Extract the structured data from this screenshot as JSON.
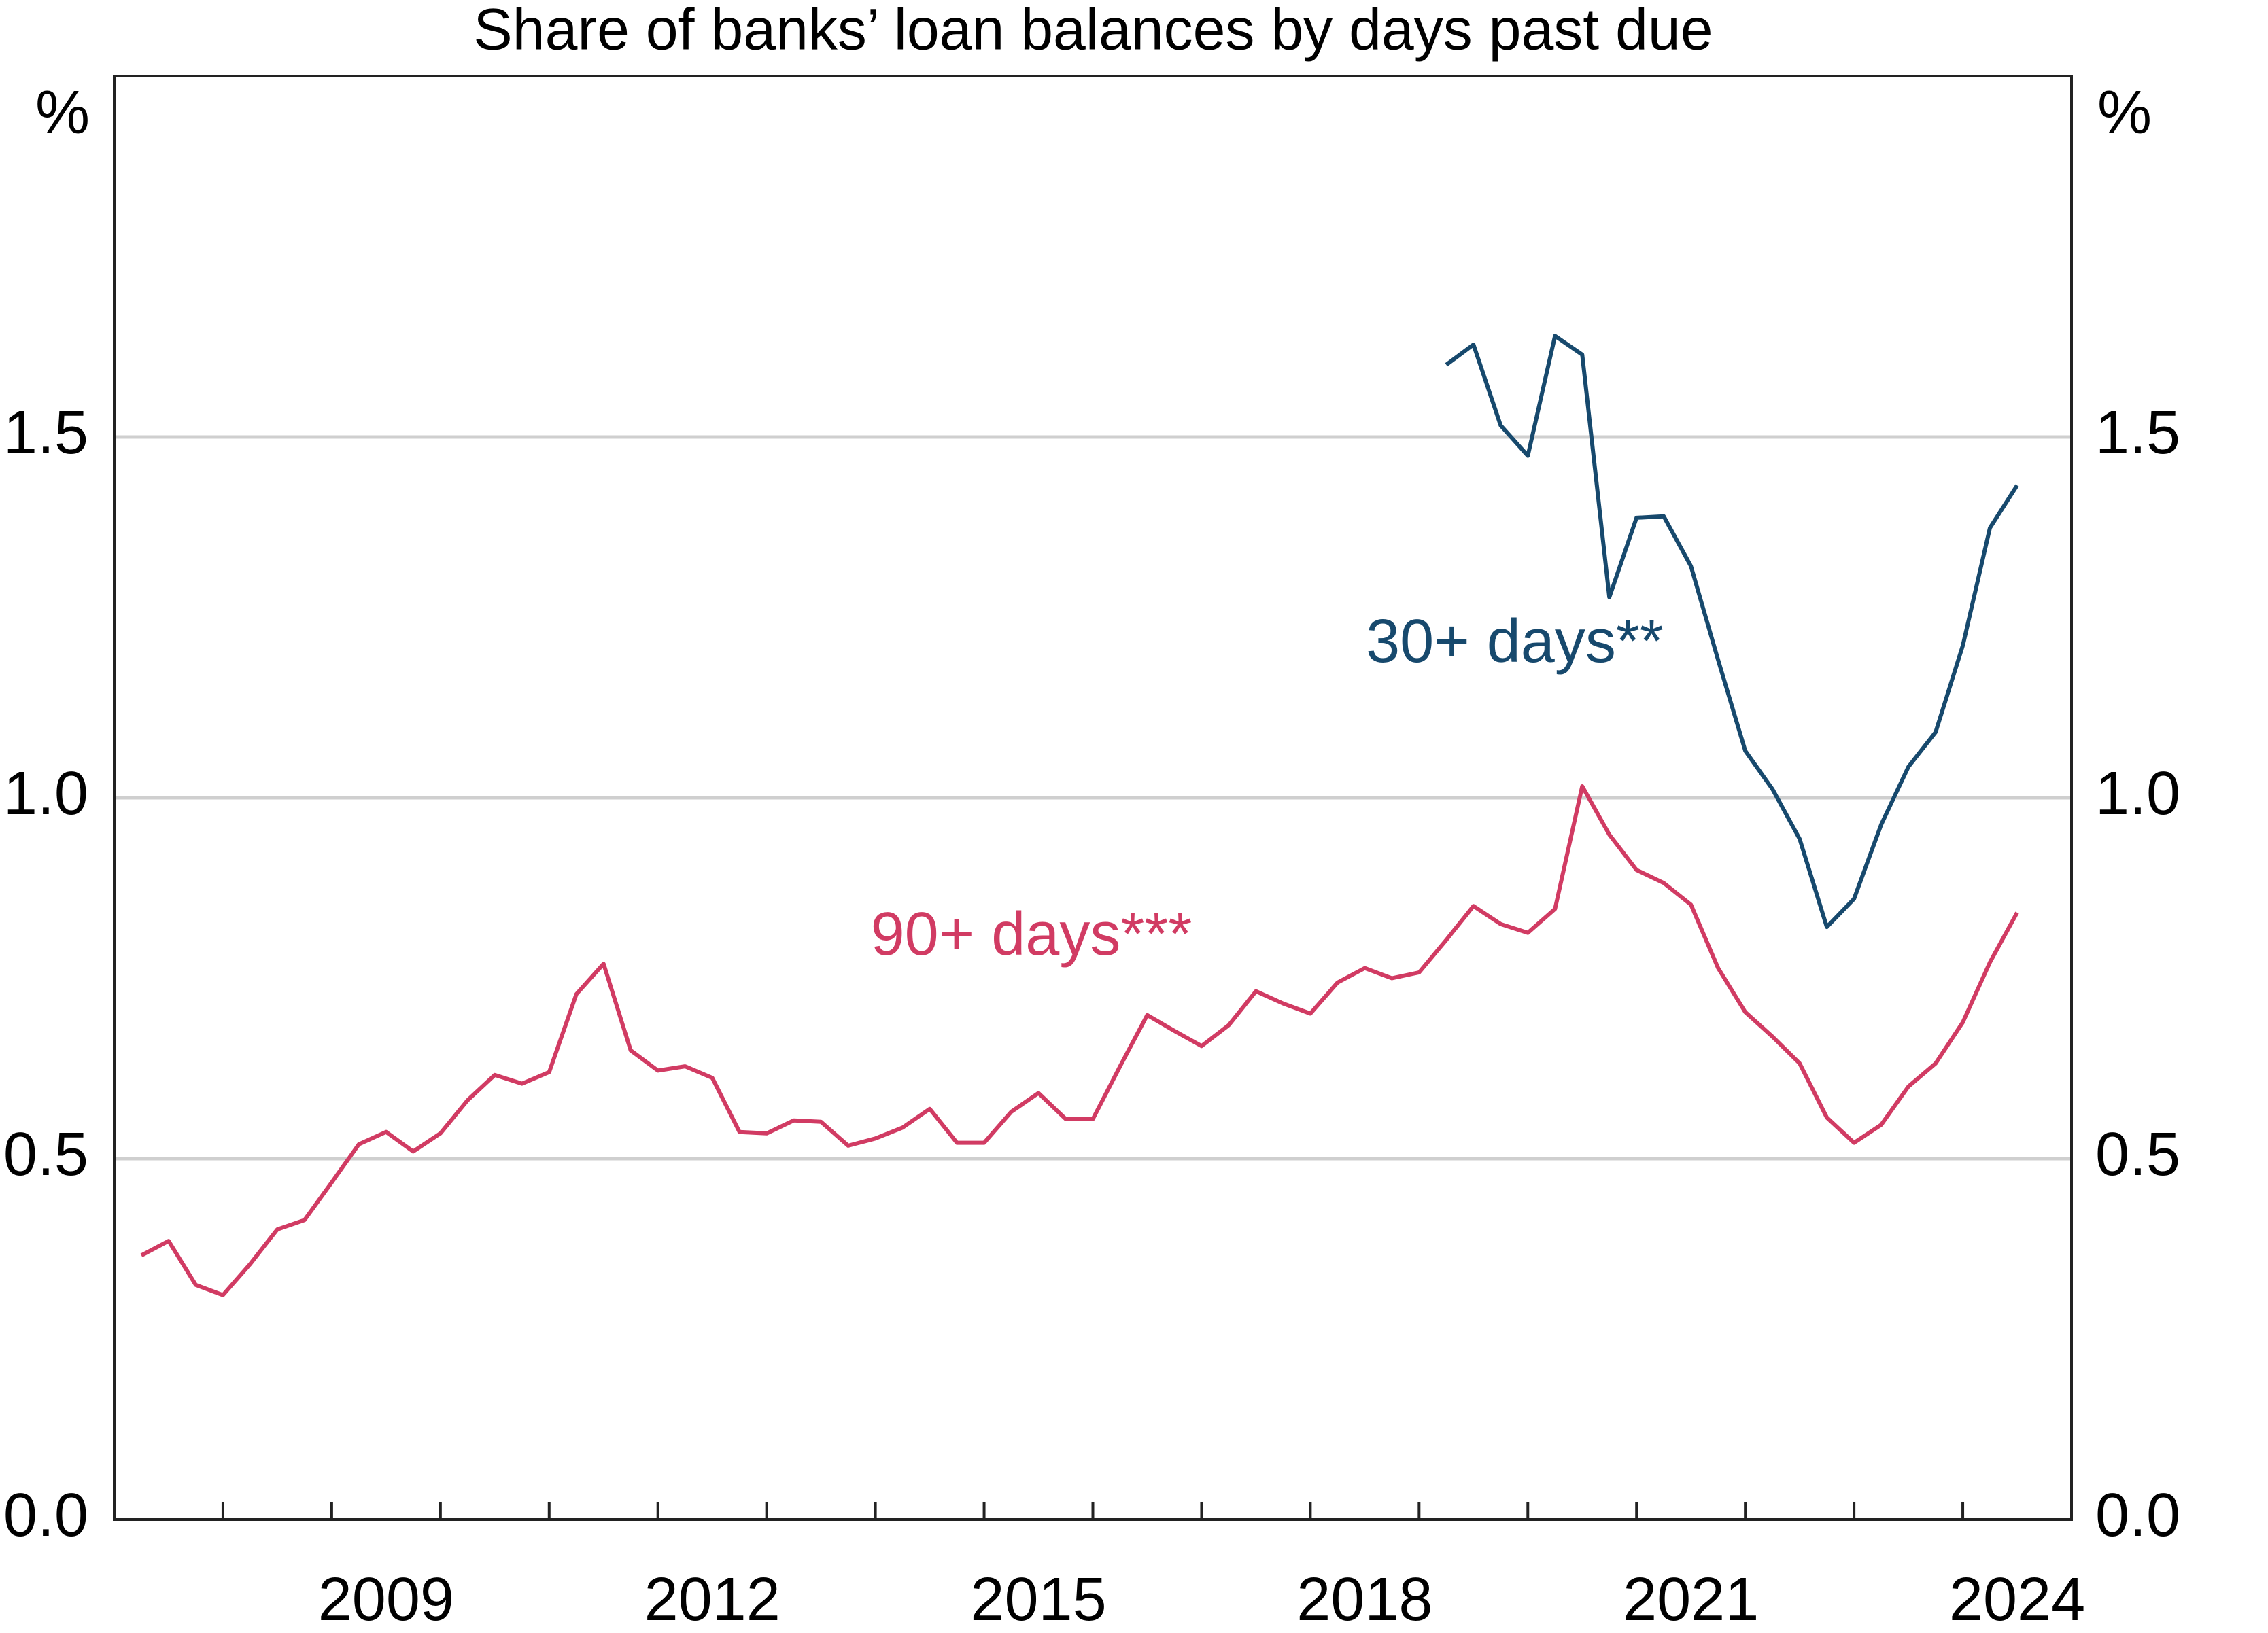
{
  "chart_data": {
    "type": "line",
    "title": "Share of banks’ loan balances by days past due",
    "y_label": "%",
    "y2_label": "%",
    "xlim": [
      2007,
      2025
    ],
    "xticks": [
      2009,
      2012,
      2015,
      2018,
      2021,
      2024
    ],
    "xminor_ticks": [
      2008,
      2009,
      2010,
      2011,
      2012,
      2013,
      2014,
      2015,
      2016,
      2017,
      2018,
      2019,
      2020,
      2021,
      2022,
      2023,
      2024
    ],
    "ylim": [
      0,
      2
    ],
    "yticks": [
      {
        "value": 0,
        "label": "0.0"
      },
      0.5,
      {
        "value": 1,
        "label": "1.0"
      },
      1.5
    ],
    "y2lim": [
      0,
      2
    ],
    "y2ticks": [
      {
        "value": 0,
        "label": "0.0"
      },
      0.5,
      {
        "value": 1,
        "label": "1.0"
      },
      1.5
    ],
    "grid": true,
    "series": [
      {
        "name": "30+ days**",
        "color": "#17496d",
        "x": [
          2019.25,
          2019.5,
          2019.75,
          2020,
          2020.25,
          2020.5,
          2020.75,
          2021,
          2021.25,
          2021.5,
          2021.75,
          2022,
          2022.25,
          2022.5,
          2022.75,
          2023,
          2023.25,
          2023.5,
          2023.75,
          2024,
          2024.25,
          2024.5
        ],
        "values": [
          1.6,
          1.628,
          1.516,
          1.474,
          1.64,
          1.614,
          1.278,
          1.388,
          1.39,
          1.321,
          1.191,
          1.065,
          1.012,
          0.943,
          0.821,
          0.86,
          0.963,
          1.043,
          1.091,
          1.211,
          1.374,
          1.433
        ]
      },
      {
        "name": "90+ days***",
        "color": "#d13b63",
        "x": [
          2007.25,
          2007.5,
          2007.75,
          2008,
          2008.25,
          2008.5,
          2008.75,
          2009,
          2009.25,
          2009.5,
          2009.75,
          2010,
          2010.25,
          2010.5,
          2010.75,
          2011,
          2011.25,
          2011.5,
          2011.75,
          2012,
          2012.25,
          2012.5,
          2012.75,
          2013,
          2013.25,
          2013.5,
          2013.75,
          2014,
          2014.25,
          2014.5,
          2014.75,
          2015,
          2015.25,
          2015.5,
          2015.75,
          2016,
          2016.25,
          2016.5,
          2016.75,
          2017,
          2017.25,
          2017.5,
          2017.75,
          2018,
          2018.25,
          2018.5,
          2018.75,
          2019,
          2019.25,
          2019.5,
          2019.75,
          2020,
          2020.25,
          2020.5,
          2020.75,
          2021,
          2021.25,
          2021.5,
          2021.75,
          2022,
          2022.25,
          2022.5,
          2022.75,
          2023,
          2023.25,
          2023.5,
          2023.75,
          2024,
          2024.25,
          2024.5
        ],
        "values": [
          0.366,
          0.386,
          0.325,
          0.311,
          0.354,
          0.402,
          0.415,
          0.467,
          0.52,
          0.537,
          0.51,
          0.535,
          0.581,
          0.616,
          0.604,
          0.62,
          0.728,
          0.77,
          0.65,
          0.622,
          0.628,
          0.612,
          0.537,
          0.535,
          0.553,
          0.551,
          0.518,
          0.528,
          0.543,
          0.569,
          0.522,
          0.522,
          0.565,
          0.591,
          0.555,
          0.555,
          0.628,
          0.699,
          0.677,
          0.656,
          0.685,
          0.732,
          0.715,
          0.701,
          0.744,
          0.764,
          0.75,
          0.758,
          0.803,
          0.85,
          0.825,
          0.813,
          0.846,
          1.016,
          0.949,
          0.9,
          0.882,
          0.852,
          0.764,
          0.703,
          0.669,
          0.632,
          0.557,
          0.522,
          0.547,
          0.6,
          0.632,
          0.689,
          0.772,
          0.841
        ]
      }
    ]
  }
}
